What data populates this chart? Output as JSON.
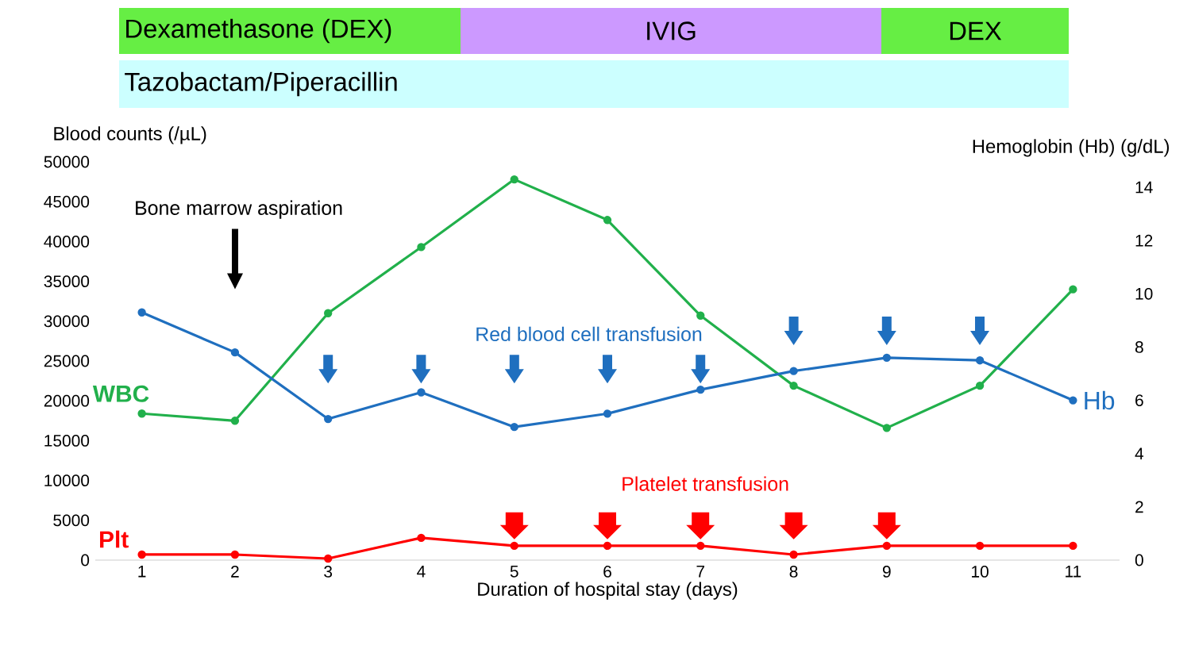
{
  "chart_data": {
    "type": "line",
    "xlabel": "Duration of hospital stay (days)",
    "ylabel": "Blood counts (/µL)",
    "y2label": "Hemoglobin (Hb) (g/dL)",
    "x": [
      1,
      2,
      3,
      4,
      5,
      6,
      7,
      8,
      9,
      10,
      11
    ],
    "xlim": [
      0.5,
      11.5
    ],
    "xticks": [
      1,
      2,
      3,
      4,
      5,
      6,
      7,
      8,
      9,
      10,
      11
    ],
    "ylim": [
      0,
      50000
    ],
    "yticks": [
      0,
      5000,
      10000,
      15000,
      20000,
      25000,
      30000,
      35000,
      40000,
      45000,
      50000
    ],
    "y2lim": [
      0,
      14
    ],
    "y2ticks": [
      0,
      2,
      4,
      6,
      8,
      10,
      12,
      14
    ],
    "marker": "circle",
    "grid": false,
    "series": [
      {
        "name": "WBC",
        "color": "#21b04b",
        "values": [
          18400,
          17500,
          31000,
          39300,
          47800,
          42700,
          30700,
          21900,
          16600,
          21900,
          34000
        ]
      },
      {
        "name": "Hb",
        "color": "#1f6fbf",
        "axis": "y2",
        "values": [
          9.3,
          7.8,
          5.3,
          6.3,
          5.0,
          5.5,
          6.4,
          7.1,
          7.6,
          7.5,
          6.0
        ]
      },
      {
        "name": "Plt",
        "color": "#ff0000",
        "values": [
          700,
          700,
          200,
          2800,
          1800,
          1800,
          1800,
          700,
          1800,
          1800,
          1800
        ]
      }
    ],
    "annotations": [
      "Dexamethasone (DEX)",
      "IVIG",
      "DEX",
      "Tazobactam/Piperacillin",
      "Bone marrow aspiration",
      "Red blood cell transfusion",
      "Platelet transfusion"
    ]
  }
}
